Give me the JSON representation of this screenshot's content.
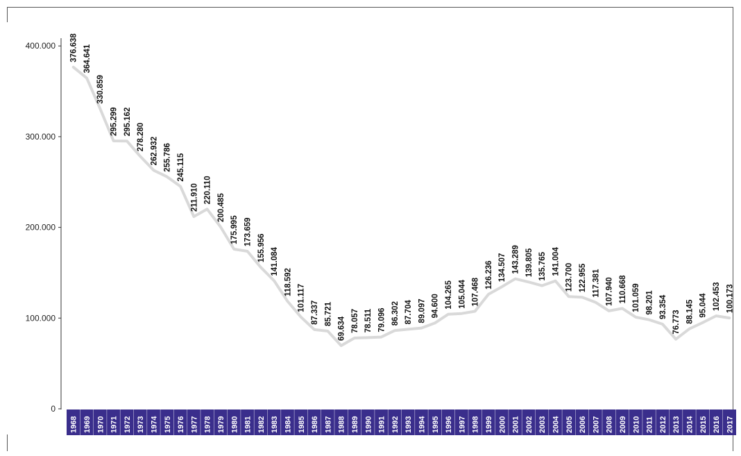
{
  "chart_data": {
    "type": "line",
    "title": "",
    "xlabel": "",
    "ylabel": "",
    "ylim": [
      0,
      420000
    ],
    "yticks": [
      0,
      100000,
      200000,
      300000,
      400000
    ],
    "ytick_labels": [
      "0",
      "100.000",
      "200.000",
      "300.000",
      "400.000"
    ],
    "grid": false,
    "legend": "none",
    "line_color": "#d9d9d9",
    "axis_band_color": "#3a2e8c",
    "categories": [
      "1968",
      "1969",
      "1970",
      "1971",
      "1972",
      "1973",
      "1974",
      "1975",
      "1976",
      "1977",
      "1978",
      "1979",
      "1980",
      "1981",
      "1982",
      "1983",
      "1984",
      "1985",
      "1986",
      "1987",
      "1988",
      "1989",
      "1990",
      "1991",
      "1992",
      "1993",
      "1994",
      "1995",
      "1996",
      "1997",
      "1998",
      "1999",
      "2000",
      "2001",
      "2002",
      "2003",
      "2004",
      "2005",
      "2006",
      "2007",
      "2008",
      "2009",
      "2010",
      "2011",
      "2012",
      "2013",
      "2014",
      "2015",
      "2016",
      "2017"
    ],
    "values": [
      376638,
      364641,
      330859,
      295299,
      295162,
      278280,
      262932,
      255786,
      245115,
      211910,
      220110,
      200485,
      175995,
      173659,
      155956,
      141084,
      118592,
      101117,
      87337,
      85721,
      69634,
      78057,
      78511,
      79096,
      86302,
      87704,
      89097,
      94600,
      104265,
      105044,
      107468,
      126236,
      134507,
      143289,
      139805,
      135765,
      141004,
      123700,
      122955,
      117381,
      107940,
      110668,
      101059,
      98201,
      93354,
      76773,
      88145,
      95044,
      102453,
      100173
    ],
    "data_labels": [
      "376.638",
      "364.641",
      "330.859",
      "295.299",
      "295.162",
      "278.280",
      "262.932",
      "255.786",
      "245.115",
      "211.910",
      "220.110",
      "200.485",
      "175.995",
      "173.659",
      "155.956",
      "141.084",
      "118.592",
      "101.117",
      "87.337",
      "85.721",
      "69.634",
      "78.057",
      "78.511",
      "79.096",
      "86.302",
      "87.704",
      "89.097",
      "94.600",
      "104.265",
      "105.044",
      "107.468",
      "126.236",
      "134.507",
      "143.289",
      "139.805",
      "135.765",
      "141.004",
      "123.700",
      "122.955",
      "117.381",
      "107.940",
      "110.668",
      "101.059",
      "98.201",
      "93.354",
      "76.773",
      "88.145",
      "95.044",
      "102.453",
      "100.173"
    ]
  }
}
